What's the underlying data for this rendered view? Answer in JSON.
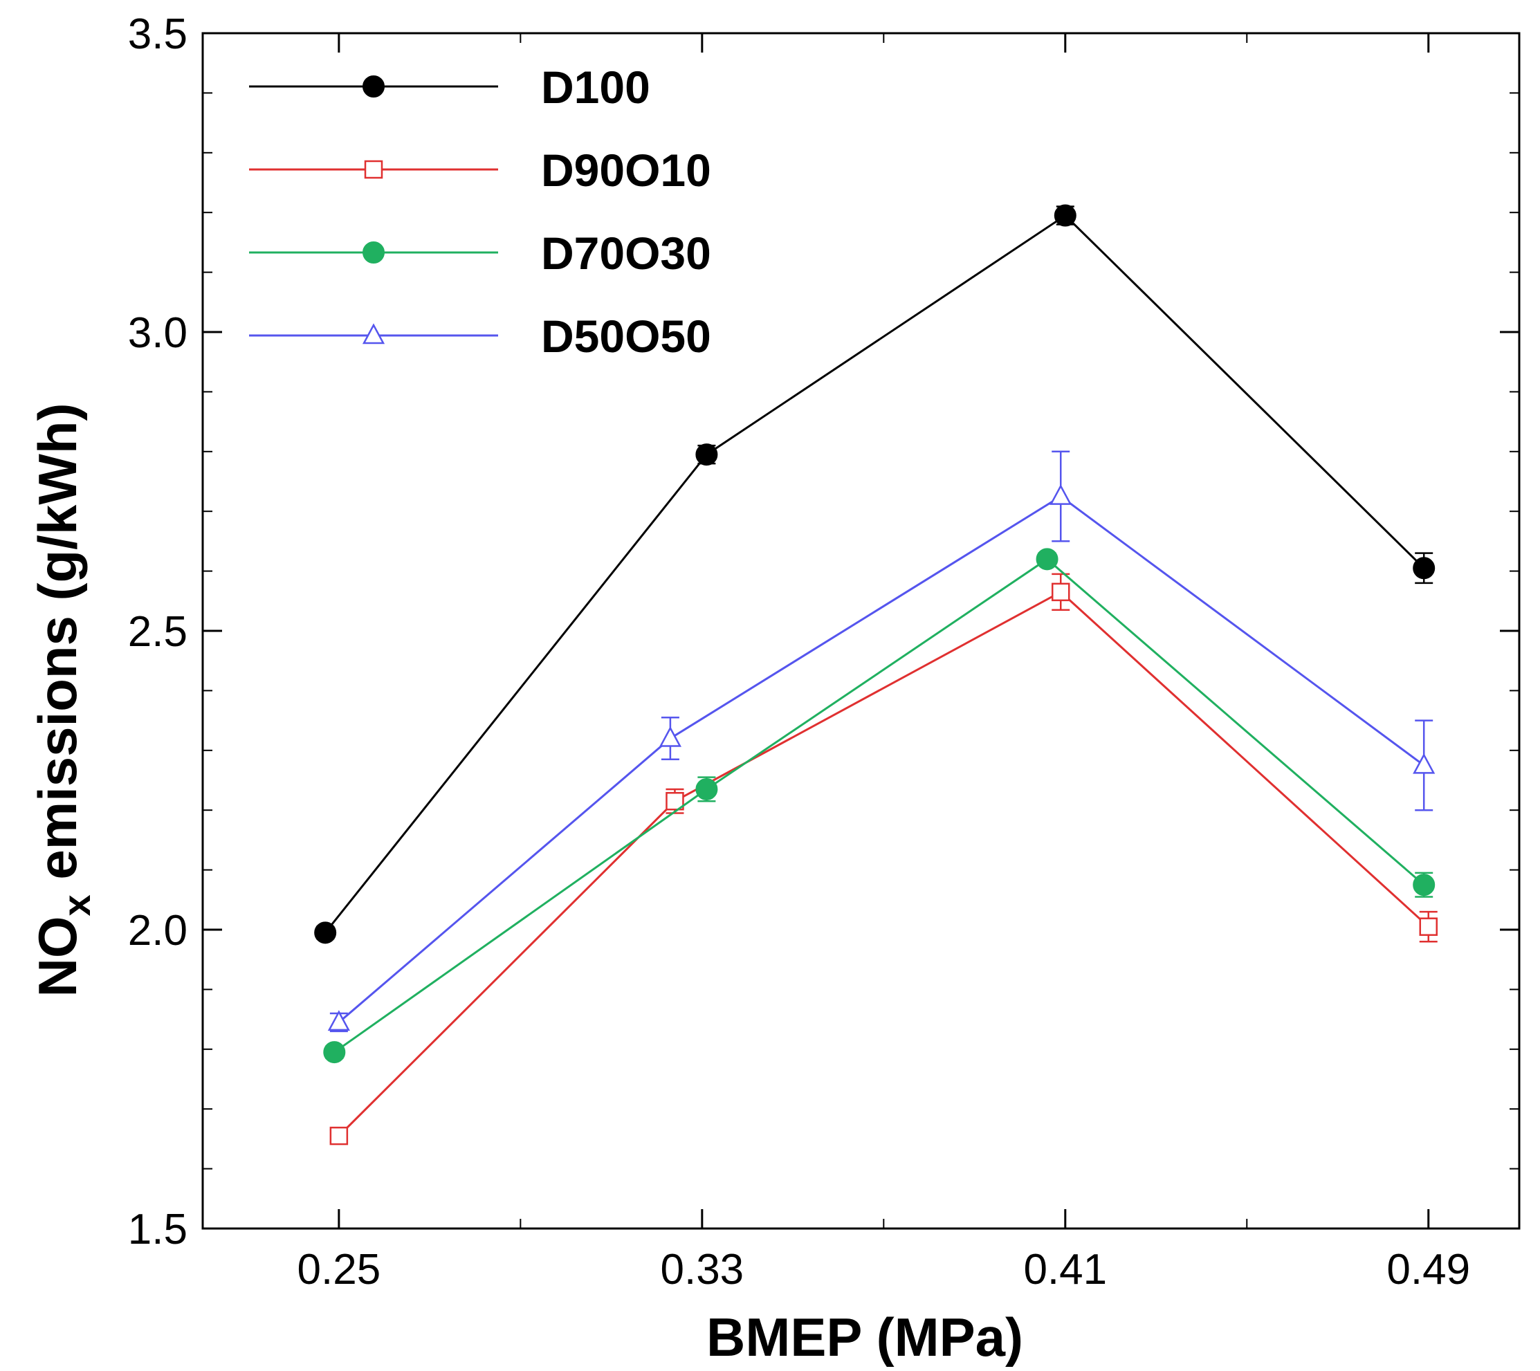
{
  "chart_data": {
    "type": "line",
    "xlabel": "BMEP (MPa)",
    "ylabel_main": "NO",
    "ylabel_sub": "x",
    "ylabel_rest": " emissions (g/kWh)",
    "xlim": [
      0.22,
      0.51
    ],
    "ylim": [
      1.5,
      3.5
    ],
    "x_ticks": [
      0.25,
      0.33,
      0.41,
      0.49
    ],
    "x_tick_labels": [
      "0.25",
      "0.33",
      "0.41",
      "0.49"
    ],
    "x_minor_ticks": [
      0.29,
      0.37,
      0.45
    ],
    "y_ticks": [
      1.5,
      2.0,
      2.5,
      3.0,
      3.5
    ],
    "y_tick_labels": [
      "1.5",
      "2.0",
      "2.5",
      "3.0",
      "3.5"
    ],
    "y_minor_ticks": [
      1.6,
      1.7,
      1.8,
      1.9,
      2.1,
      2.2,
      2.3,
      2.4,
      2.6,
      2.7,
      2.8,
      2.9,
      3.1,
      3.2,
      3.3,
      3.4
    ],
    "grid": false,
    "legend_position": "top-left",
    "series": [
      {
        "name": "D100",
        "color": "#000000",
        "marker": "filled-circle",
        "x": [
          0.247,
          0.331,
          0.41,
          0.489
        ],
        "y": [
          1.995,
          2.795,
          3.195,
          2.605
        ],
        "err": [
          0.01,
          0.015,
          0.015,
          0.025
        ]
      },
      {
        "name": "D90O10",
        "color": "#e03030",
        "marker": "open-square",
        "x": [
          0.25,
          0.324,
          0.409,
          0.49
        ],
        "y": [
          1.655,
          2.215,
          2.565,
          2.005
        ],
        "err": [
          0.01,
          0.02,
          0.03,
          0.025
        ]
      },
      {
        "name": "D70O30",
        "color": "#20b060",
        "marker": "filled-circle",
        "x": [
          0.249,
          0.331,
          0.406,
          0.489
        ],
        "y": [
          1.795,
          2.235,
          2.62,
          2.075
        ],
        "err": [
          0.01,
          0.02,
          0.01,
          0.02
        ]
      },
      {
        "name": "D50O50",
        "color": "#5555ee",
        "marker": "open-triangle",
        "x": [
          0.25,
          0.323,
          0.409,
          0.489
        ],
        "y": [
          1.845,
          2.32,
          2.725,
          2.275
        ],
        "err": [
          0.015,
          0.035,
          0.075,
          0.075
        ]
      }
    ]
  }
}
